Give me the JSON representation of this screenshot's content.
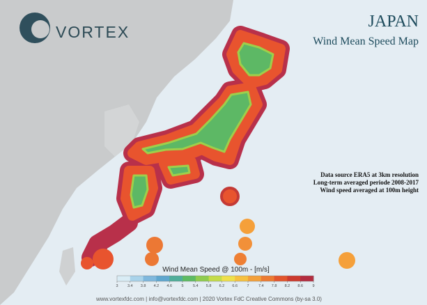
{
  "header": {
    "logo": "VORTEX",
    "title": "JAPAN",
    "subtitle": "Wind Mean Speed Map"
  },
  "notes": [
    "Data source ERA5 at 3km resolution",
    "Long-term averaged periode 2008-2017",
    "Wind speed averaged at 100m height"
  ],
  "legend": {
    "title": "Wind Mean Speed @ 100m - [m/s]",
    "ticks": [
      3,
      3.4,
      3.8,
      4.2,
      4.6,
      5,
      5.4,
      5.8,
      6.2,
      6.6,
      7,
      7.4,
      7.8,
      8.2,
      8.6,
      9
    ],
    "colors": [
      "#d9ecf5",
      "#a9d3ea",
      "#7fb8dd",
      "#5fa7cf",
      "#4fae9a",
      "#5dbb63",
      "#8fcc4f",
      "#c4dc4a",
      "#efe04b",
      "#f6c140",
      "#f3a03a",
      "#ec7b32",
      "#e2552c",
      "#cc3a2e",
      "#b32c3f"
    ]
  },
  "footer": "www.vortexfdc.com | info@vortexfdc.com | 2020 Vortex FdC  Creative Commons (by-sa 3.0)"
}
